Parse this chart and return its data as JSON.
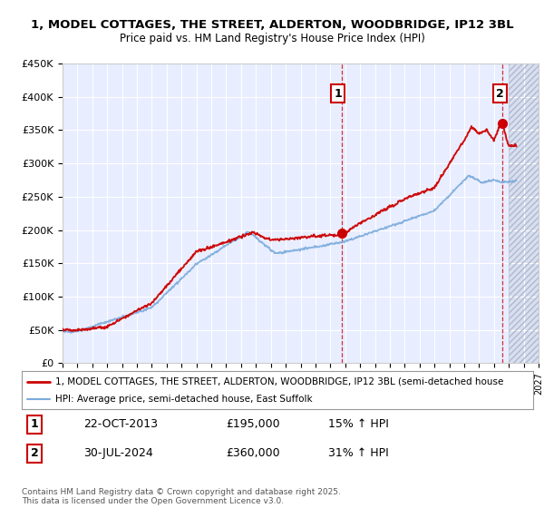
{
  "title_line1": "1, MODEL COTTAGES, THE STREET, ALDERTON, WOODBRIDGE, IP12 3BL",
  "title_line2": "Price paid vs. HM Land Registry's House Price Index (HPI)",
  "background_color": "#ffffff",
  "plot_bg_color": "#e8eeff",
  "grid_color": "#ffffff",
  "red_color": "#cc0000",
  "blue_color": "#7aabdb",
  "purchase1_date": "22-OCT-2013",
  "purchase1_price": 195000,
  "purchase1_label": "15% ↑ HPI",
  "purchase1_x": 2013.8,
  "purchase2_date": "30-JUL-2024",
  "purchase2_price": 360000,
  "purchase2_label": "31% ↑ HPI",
  "purchase2_x": 2024.58,
  "legend_line1": "1, MODEL COTTAGES, THE STREET, ALDERTON, WOODBRIDGE, IP12 3BL (semi-detached house",
  "legend_line2": "HPI: Average price, semi-detached house, East Suffolk",
  "footer": "Contains HM Land Registry data © Crown copyright and database right 2025.\nThis data is licensed under the Open Government Licence v3.0.",
  "xmin": 1995,
  "xmax": 2027,
  "ymin": 0,
  "ymax": 450000,
  "ytick_values": [
    0,
    50000,
    100000,
    150000,
    200000,
    250000,
    300000,
    350000,
    400000,
    450000
  ],
  "ytick_labels": [
    "£0",
    "£50K",
    "£100K",
    "£150K",
    "£200K",
    "£250K",
    "£300K",
    "£350K",
    "£400K",
    "£450K"
  ]
}
